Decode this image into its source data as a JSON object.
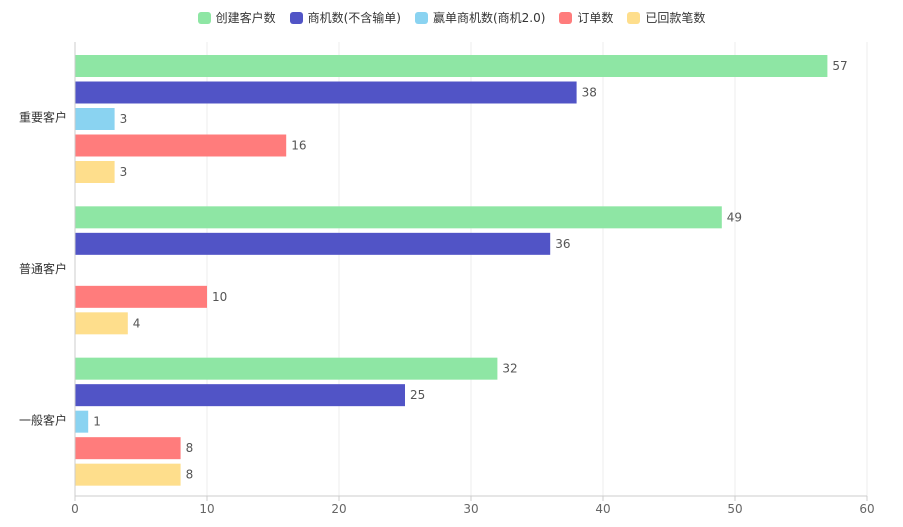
{
  "chart_data": {
    "type": "bar",
    "orientation": "horizontal",
    "categories": [
      "重要客户",
      "普通客户",
      "一般客户"
    ],
    "series": [
      {
        "name": "创建客户数",
        "color": "#8ee6a4",
        "values": [
          57,
          49,
          32
        ]
      },
      {
        "name": "商机数(不含输单)",
        "color": "#5154c6",
        "values": [
          38,
          36,
          25
        ]
      },
      {
        "name": "赢单商机数(商机2.0)",
        "color": "#8ad3f1",
        "values": [
          3,
          0,
          1
        ]
      },
      {
        "name": "订单数",
        "color": "#ff7c7c",
        "values": [
          16,
          10,
          8
        ]
      },
      {
        "name": "已回款笔数",
        "color": "#fede8c",
        "values": [
          3,
          4,
          8
        ]
      }
    ],
    "xlim": [
      0,
      60
    ],
    "x_ticks": [
      0,
      10,
      20,
      30,
      40,
      50,
      60
    ],
    "legend_position": "top-center",
    "grid": "vertical"
  }
}
